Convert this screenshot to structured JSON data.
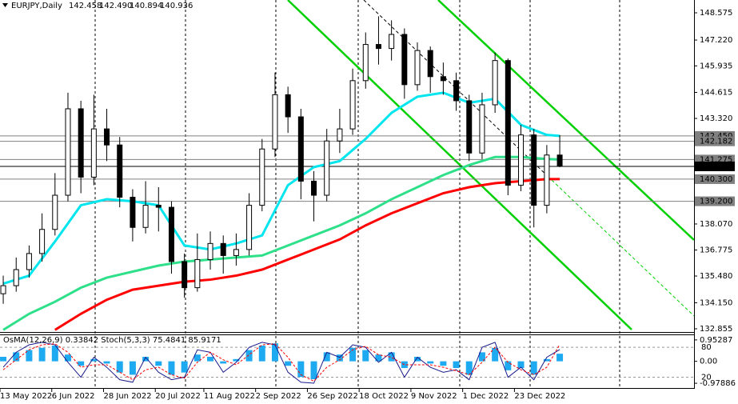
{
  "chart_data": [
    {
      "type": "candlestick",
      "title": "EURJPY,Daily",
      "header_values": [
        "142.458",
        "142.490",
        "140.894",
        "140.936"
      ],
      "xlim": [
        -1,
        213.5
      ],
      "ylim": [
        132.696,
        149.212
      ],
      "xticks": [
        {
          "value": -1,
          "label": "13 May 2022"
        },
        {
          "value": 15,
          "label": "6 Jun 2022"
        },
        {
          "value": 31,
          "label": "28 Jun 2022"
        },
        {
          "value": 47,
          "label": "20 Jul 2022"
        },
        {
          "value": 62,
          "label": "11 Aug 2022"
        },
        {
          "value": 78,
          "label": "2 Sep 2022"
        },
        {
          "value": 94,
          "label": "26 Sep 2022"
        },
        {
          "value": 110,
          "label": "18 Oct 2022"
        },
        {
          "value": 126,
          "label": "9 Nov 2022"
        },
        {
          "value": 142,
          "label": "1 Dec 2022"
        },
        {
          "value": 158,
          "label": "23 Dec 2022"
        }
      ],
      "yticks": [
        148.575,
        {
          "value": 147.22,
          "label": "147.220"
        },
        145.935,
        144.615,
        {
          "value": 143.32,
          "label": "143.320"
        },
        {
          "value": 138.07,
          "label": "138.070"
        },
        136.775,
        {
          "value": 135.48,
          "label": "135.480"
        },
        {
          "value": 134.15,
          "label": "134.150"
        },
        132.855
      ],
      "levels": [
        {
          "value": 142.45,
          "label": "142.450",
          "color": "#808080"
        },
        {
          "value": 142.182,
          "label": "142.182",
          "color": "#808080"
        },
        {
          "value": 141.275,
          "label": "141.275",
          "color": "#808080"
        },
        {
          "value": 140.936,
          "label": "140.936",
          "color": "#000000"
        },
        {
          "value": 140.3,
          "label": "140.300",
          "color": "#808080"
        },
        {
          "value": 139.2,
          "label": "139.200",
          "color": "#808080"
        }
      ],
      "up_color": "#ffffff",
      "down_color": "#000000",
      "x": [
        0,
        4,
        8,
        12,
        16,
        20,
        24,
        28,
        32,
        36,
        40,
        44,
        48,
        52,
        56,
        60,
        64,
        68,
        72,
        76,
        80,
        84,
        88,
        92,
        96,
        100,
        104,
        108,
        112,
        116,
        120,
        124,
        128,
        132,
        136,
        140,
        144,
        148,
        152,
        156,
        160,
        164,
        168,
        172
      ],
      "open": [
        134.6,
        135.0,
        135.8,
        136.6,
        137.8,
        139.5,
        143.8,
        140.4,
        142.8,
        142.0,
        139.4,
        137.9,
        139.0,
        138.9,
        136.2,
        134.9,
        136.3,
        137.1,
        136.5,
        136.8,
        139.0,
        141.8,
        144.5,
        143.4,
        140.2,
        139.5,
        142.2,
        142.8,
        145.2,
        147.0,
        146.8,
        147.5,
        145.0,
        146.7,
        145.4,
        145.2,
        144.2,
        141.6,
        144.0,
        146.2,
        140.0,
        142.5,
        139.0,
        141.5
      ],
      "high": [
        135.5,
        136.4,
        137.0,
        138.6,
        140.6,
        144.6,
        144.2,
        144.5,
        143.8,
        142.4,
        139.8,
        140.2,
        139.9,
        139.2,
        136.6,
        137.6,
        137.7,
        137.5,
        137.6,
        139.6,
        142.3,
        145.6,
        144.9,
        143.8,
        140.7,
        142.8,
        143.8,
        145.8,
        147.6,
        148.4,
        148.2,
        147.8,
        147.1,
        146.9,
        146.1,
        145.6,
        144.5,
        144.6,
        146.6,
        146.3,
        143.0,
        142.8,
        142.0,
        142.49
      ],
      "low": [
        134.1,
        134.7,
        135.4,
        136.2,
        137.5,
        139.2,
        139.6,
        140.0,
        141.2,
        138.9,
        137.2,
        137.6,
        137.7,
        135.6,
        134.4,
        134.7,
        135.8,
        135.6,
        136.0,
        136.5,
        138.7,
        141.4,
        142.6,
        139.3,
        138.2,
        139.2,
        141.6,
        142.5,
        144.8,
        146.0,
        146.2,
        144.3,
        144.7,
        144.6,
        144.5,
        143.7,
        141.2,
        141.3,
        143.6,
        139.5,
        139.7,
        137.9,
        138.6,
        140.894
      ],
      "close": [
        135.0,
        135.8,
        136.6,
        137.8,
        139.5,
        143.8,
        140.4,
        142.8,
        142.0,
        139.4,
        137.9,
        139.0,
        138.9,
        136.2,
        134.9,
        136.3,
        137.1,
        136.5,
        136.8,
        139.0,
        141.8,
        144.5,
        143.4,
        140.2,
        139.5,
        142.2,
        142.8,
        145.2,
        147.0,
        146.8,
        147.5,
        145.0,
        146.7,
        145.4,
        145.2,
        144.2,
        141.6,
        144.0,
        146.2,
        140.0,
        142.5,
        139.0,
        141.5,
        140.936
      ],
      "series": [
        {
          "color": "#00e5ee",
          "x": [
            0,
            8,
            16,
            24,
            32,
            40,
            48,
            56,
            64,
            72,
            80,
            88,
            96,
            104,
            112,
            120,
            128,
            136,
            144,
            152,
            160,
            168,
            172
          ],
          "values": [
            135.1,
            135.5,
            137.2,
            139.0,
            139.3,
            139.2,
            139.0,
            137.0,
            136.8,
            137.1,
            137.5,
            140.0,
            140.9,
            141.2,
            142.3,
            143.6,
            144.4,
            144.6,
            144.1,
            144.3,
            143.0,
            142.5,
            142.45
          ]
        },
        {
          "color": "#2ee08a",
          "x": [
            0,
            8,
            16,
            24,
            32,
            40,
            48,
            56,
            64,
            72,
            80,
            88,
            96,
            104,
            112,
            120,
            128,
            136,
            144,
            152,
            160,
            168,
            172
          ],
          "values": [
            132.8,
            133.6,
            134.2,
            134.9,
            135.4,
            135.7,
            136.0,
            136.2,
            136.3,
            136.4,
            136.5,
            137.0,
            137.5,
            138.0,
            138.6,
            139.3,
            139.9,
            140.5,
            141.0,
            141.4,
            141.4,
            141.3,
            141.275
          ]
        },
        {
          "color": "#ff0000",
          "x": [
            0,
            8,
            16,
            24,
            32,
            40,
            48,
            56,
            64,
            72,
            80,
            88,
            96,
            104,
            112,
            120,
            128,
            136,
            144,
            152,
            160,
            168,
            172
          ],
          "values": [
            null,
            null,
            132.8,
            133.6,
            134.3,
            134.8,
            135.0,
            135.2,
            135.3,
            135.5,
            135.8,
            136.3,
            136.8,
            137.3,
            138.0,
            138.6,
            139.1,
            139.6,
            139.9,
            140.1,
            140.2,
            140.3,
            140.3
          ]
        }
      ]
    },
    {
      "type": "oscillator",
      "title": "OsMA(12,26,9) 0.33842 Stoch(5,3,3) 75.4841 85.9171",
      "xlim": [
        -1,
        213.5
      ],
      "ylim": [
        -1.19,
        1.163
      ],
      "y2lim": [
        -1.6,
        104.3
      ],
      "yticks": [
        0.95287,
        {
          "value": 0,
          "label": "0.00"
        },
        -0.97886
      ],
      "y2ticks": [
        80,
        20
      ],
      "x": [
        0,
        4,
        8,
        12,
        16,
        20,
        24,
        28,
        32,
        36,
        40,
        44,
        48,
        52,
        56,
        60,
        64,
        68,
        72,
        76,
        80,
        84,
        88,
        92,
        96,
        100,
        104,
        108,
        112,
        116,
        120,
        124,
        128,
        132,
        136,
        140,
        144,
        148,
        152,
        156,
        160,
        164,
        168,
        172
      ],
      "series": [
        {
          "color": "#1eaaf0",
          "values": [
            0.2,
            0.4,
            0.5,
            0.6,
            0.7,
            0.3,
            -0.2,
            0.1,
            -0.1,
            -0.5,
            -0.6,
            0.2,
            -0.2,
            -0.6,
            -0.5,
            0.3,
            0.2,
            -0.1,
            0.1,
            0.5,
            0.7,
            0.8,
            -0.2,
            -0.7,
            -0.8,
            0.4,
            0.3,
            0.6,
            0.5,
            0.3,
            0.4,
            -0.3,
            0.2,
            -0.1,
            -0.2,
            -0.3,
            -0.6,
            0.4,
            0.6,
            -0.4,
            -0.3,
            -0.6,
            0.1,
            0.33842
          ]
        },
        {
          "color": "#1a1a8c",
          "axis": "y2",
          "values": [
            40,
            70,
            85,
            90,
            85,
            50,
            20,
            60,
            40,
            15,
            10,
            60,
            30,
            15,
            20,
            75,
            70,
            30,
            50,
            80,
            90,
            85,
            30,
            10,
            8,
            70,
            60,
            85,
            80,
            50,
            70,
            20,
            60,
            40,
            30,
            35,
            15,
            80,
            90,
            20,
            40,
            15,
            60,
            75.4841
          ]
        },
        {
          "color": "#ff0000",
          "axis": "y2",
          "values": [
            35,
            55,
            75,
            85,
            87,
            70,
            40,
            45,
            45,
            30,
            15,
            35,
            40,
            25,
            18,
            50,
            70,
            55,
            45,
            65,
            85,
            87,
            60,
            25,
            12,
            40,
            55,
            75,
            82,
            65,
            60,
            45,
            45,
            45,
            40,
            33,
            25,
            50,
            80,
            50,
            35,
            25,
            40,
            85.9171
          ]
        }
      ]
    }
  ]
}
